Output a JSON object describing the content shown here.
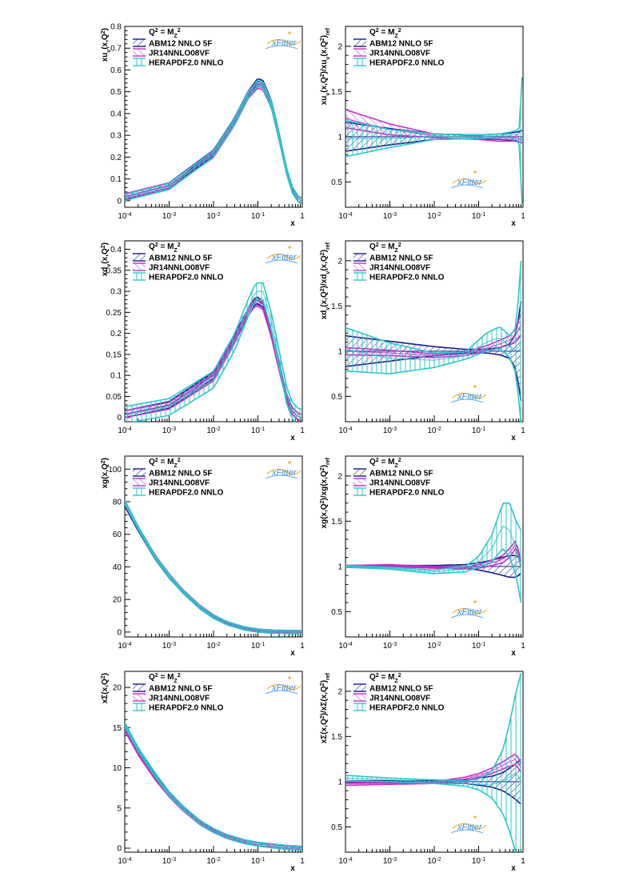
{
  "colors": {
    "abm": "#1a1a8c",
    "jr": "#c62fc9",
    "hera": "#2cc7c9"
  },
  "icons": [
    "xfitter-logo"
  ],
  "panel_titles": [
    {
      "left_y": "xu_v(x,Q^2)",
      "right_y": "xu_v(x,Q^2)/xu_v(x,Q^2)_ref"
    },
    {
      "left_y": "xd_v(x,Q^2)",
      "right_y": "xd_v(x,Q^2)/xd_v(x,Q^2)_ref"
    },
    {
      "left_y": "xg(x,Q^2)",
      "right_y": "xg(x,Q^2)/xg(x,Q^2)_ref"
    },
    {
      "left_y": "xΣ(x,Q^2)",
      "right_y": "xΣ(x,Q^2)/xΣ(x,Q^2)_ref"
    }
  ],
  "chart_data": [
    {
      "type": "line",
      "id": "uv_abs",
      "ylabel": "xu_v(x,Q^2)",
      "xlabel": "x",
      "xscale": "log",
      "xlim": [
        0.0001,
        1
      ],
      "ylim": [
        -0.03,
        0.8
      ],
      "yticks": [
        0,
        0.1,
        0.2,
        0.3,
        0.4,
        0.5,
        0.6,
        0.7,
        0.8
      ],
      "ytick_labels": [
        "0",
        "0.1",
        "0.2",
        "0.3",
        "0.4",
        "0.5",
        "0.6",
        "0.7",
        "0.8"
      ],
      "legend_header": "Q^2 = M_Z^2",
      "x": [
        0.0001,
        0.001,
        0.01,
        0.03,
        0.06,
        0.1,
        0.13,
        0.2,
        0.3,
        0.45,
        0.6,
        0.8,
        0.95
      ],
      "series": [
        {
          "name": "ABM12 NNLO 5F",
          "values": [
            0.018,
            0.07,
            0.22,
            0.37,
            0.49,
            0.55,
            0.54,
            0.45,
            0.3,
            0.13,
            0.05,
            0.008,
            0.0
          ],
          "band": 0.012
        },
        {
          "name": "JR14NNLO08VF",
          "values": [
            0.02,
            0.07,
            0.21,
            0.36,
            0.48,
            0.53,
            0.52,
            0.44,
            0.29,
            0.13,
            0.05,
            0.008,
            0.0
          ],
          "band": 0.012
        },
        {
          "name": "HERAPDF2.0 NNLO",
          "values": [
            0.015,
            0.065,
            0.215,
            0.365,
            0.485,
            0.54,
            0.53,
            0.445,
            0.295,
            0.13,
            0.05,
            0.008,
            0.0
          ],
          "band": 0.014
        }
      ]
    },
    {
      "type": "line",
      "id": "uv_ratio",
      "ylabel": "xu_v(x,Q^2)/xu_v(x,Q^2)_ref",
      "xlabel": "x",
      "xscale": "log",
      "xlim": [
        0.0001,
        1
      ],
      "ylim": [
        0.22,
        2.22
      ],
      "yticks": [
        0.5,
        1,
        1.5,
        2
      ],
      "ytick_labels": [
        "0.5",
        "1",
        "1.5",
        "2"
      ],
      "legend_header": "Q^2 = M_Z^2",
      "x": [
        0.0001,
        0.001,
        0.01,
        0.1,
        0.3,
        0.5,
        0.7,
        0.85,
        0.95
      ],
      "series": [
        {
          "name": "ABM12 NNLO 5F",
          "values": [
            1.0,
            1.0,
            1.0,
            1.0,
            1.0,
            1.0,
            1.0,
            1.0,
            1.0
          ],
          "band": [
            0.16,
            0.09,
            0.03,
            0.02,
            0.03,
            0.04,
            0.05,
            0.06,
            0.07
          ]
        },
        {
          "name": "JR14NNLO08VF",
          "values": [
            1.2,
            1.08,
            1.01,
            0.99,
            0.97,
            0.97,
            0.98,
            0.97,
            0.96
          ],
          "band": [
            0.1,
            0.06,
            0.02,
            0.02,
            0.02,
            0.02,
            0.02,
            0.03,
            0.03
          ]
        },
        {
          "name": "HERAPDF2.0 NNLO",
          "values": [
            0.98,
            0.98,
            1.0,
            1.0,
            1.01,
            1.02,
            1.02,
            1.0,
            0.96
          ],
          "band": [
            0.2,
            0.1,
            0.03,
            0.02,
            0.02,
            0.03,
            0.05,
            0.1,
            0.7
          ]
        }
      ]
    },
    {
      "type": "line",
      "id": "dv_abs",
      "ylabel": "xd_v(x,Q^2)",
      "xlabel": "x",
      "xscale": "log",
      "xlim": [
        0.0001,
        1
      ],
      "ylim": [
        -0.01,
        0.42
      ],
      "yticks": [
        0,
        0.05,
        0.1,
        0.15,
        0.2,
        0.25,
        0.3,
        0.35,
        0.4
      ],
      "ytick_labels": [
        "0",
        "0.05",
        "0.1",
        "0.15",
        "0.2",
        "0.25",
        "0.3",
        "0.35",
        "0.4"
      ],
      "legend_header": "Q^2 = M_Z^2",
      "x": [
        0.0001,
        0.001,
        0.01,
        0.03,
        0.06,
        0.09,
        0.13,
        0.2,
        0.3,
        0.45,
        0.6,
        0.8,
        0.95
      ],
      "series": [
        {
          "name": "ABM12 NNLO 5F",
          "values": [
            0.008,
            0.03,
            0.1,
            0.19,
            0.25,
            0.28,
            0.27,
            0.2,
            0.12,
            0.045,
            0.015,
            0.002,
            0.0
          ],
          "band": 0.008
        },
        {
          "name": "JR14NNLO08VF",
          "values": [
            0.008,
            0.028,
            0.095,
            0.185,
            0.25,
            0.275,
            0.265,
            0.2,
            0.12,
            0.045,
            0.015,
            0.002,
            0.0
          ],
          "band": 0.008
        },
        {
          "name": "HERAPDF2.0 NNLO",
          "values": [
            0.006,
            0.025,
            0.09,
            0.18,
            0.26,
            0.3,
            0.3,
            0.23,
            0.14,
            0.05,
            0.017,
            0.002,
            0.0
          ],
          "band": 0.02
        }
      ]
    },
    {
      "type": "line",
      "id": "dv_ratio",
      "ylabel": "xd_v(x,Q^2)/xd_v(x,Q^2)_ref",
      "xlabel": "x",
      "xscale": "log",
      "xlim": [
        0.0001,
        1
      ],
      "ylim": [
        0.22,
        2.22
      ],
      "yticks": [
        0.5,
        1,
        1.5,
        2
      ],
      "ytick_labels": [
        "0.5",
        "1",
        "1.5",
        "2"
      ],
      "legend_header": "Q^2 = M_Z^2",
      "x": [
        0.0001,
        0.001,
        0.01,
        0.05,
        0.15,
        0.3,
        0.5,
        0.7,
        0.9
      ],
      "series": [
        {
          "name": "ABM12 NNLO 5F",
          "values": [
            1.0,
            1.0,
            1.0,
            1.0,
            1.0,
            1.0,
            1.0,
            1.0,
            1.0
          ],
          "band": [
            0.17,
            0.11,
            0.05,
            0.02,
            0.02,
            0.04,
            0.08,
            0.2,
            0.55
          ]
        },
        {
          "name": "JR14NNLO08VF",
          "values": [
            1.0,
            0.98,
            0.95,
            0.97,
            1.03,
            1.08,
            1.12,
            1.18,
            1.3
          ],
          "band": [
            0.04,
            0.03,
            0.02,
            0.02,
            0.03,
            0.04,
            0.05,
            0.08,
            0.12
          ]
        },
        {
          "name": "HERAPDF2.0 NNLO",
          "values": [
            1.02,
            0.92,
            0.9,
            0.95,
            1.1,
            1.15,
            1.05,
            1.0,
            1.1
          ],
          "band": [
            0.24,
            0.17,
            0.08,
            0.04,
            0.1,
            0.12,
            0.12,
            0.25,
            0.9
          ]
        }
      ]
    },
    {
      "type": "line",
      "id": "g_abs",
      "ylabel": "xg(x,Q^2)",
      "xlabel": "x",
      "xscale": "log",
      "xlim": [
        0.0001,
        1
      ],
      "ylim": [
        -3,
        108
      ],
      "yticks": [
        0,
        20,
        40,
        60,
        80,
        100
      ],
      "ytick_labels": [
        "0",
        "20",
        "40",
        "60",
        "80",
        "100"
      ],
      "legend_header": "Q^2 = M_Z^2",
      "x": [
        0.0001,
        0.0002,
        0.0005,
        0.001,
        0.002,
        0.005,
        0.01,
        0.02,
        0.05,
        0.1,
        0.2,
        0.5,
        1.0
      ],
      "series": [
        {
          "name": "ABM12 NNLO 5F",
          "values": [
            78,
            63,
            45,
            34,
            25,
            15,
            9.5,
            5.5,
            2.2,
            0.9,
            0.3,
            0.02,
            0.0
          ],
          "band": 0.8
        },
        {
          "name": "JR14NNLO08VF",
          "values": [
            79,
            64,
            46,
            35,
            25.5,
            15.5,
            9.8,
            5.6,
            2.3,
            0.9,
            0.3,
            0.02,
            0.0
          ],
          "band": 0.8
        },
        {
          "name": "HERAPDF2.0 NNLO",
          "values": [
            80,
            64,
            45.5,
            34.5,
            25,
            15,
            9.4,
            5.4,
            2.2,
            0.9,
            0.3,
            0.02,
            0.0
          ],
          "band": 1.0
        }
      ]
    },
    {
      "type": "line",
      "id": "g_ratio",
      "ylabel": "xg(x,Q^2)/xg(x,Q^2)_ref",
      "xlabel": "x",
      "xscale": "log",
      "xlim": [
        0.0001,
        1
      ],
      "ylim": [
        0.22,
        2.22
      ],
      "yticks": [
        0.5,
        1,
        1.5,
        2
      ],
      "ytick_labels": [
        "0.5",
        "1",
        "1.5",
        "2"
      ],
      "legend_header": "Q^2 = M_Z^2",
      "x": [
        0.0001,
        0.001,
        0.01,
        0.05,
        0.1,
        0.2,
        0.35,
        0.5,
        0.7,
        0.9
      ],
      "series": [
        {
          "name": "ABM12 NNLO 5F",
          "values": [
            1.0,
            1.0,
            1.0,
            1.0,
            1.0,
            1.0,
            1.0,
            1.0,
            1.0,
            1.0
          ],
          "band": [
            0.01,
            0.01,
            0.01,
            0.02,
            0.04,
            0.07,
            0.1,
            0.12,
            0.12,
            0.08
          ]
        },
        {
          "name": "JR14NNLO08VF",
          "values": [
            1.0,
            1.01,
            0.99,
            0.98,
            1.0,
            1.04,
            1.08,
            1.15,
            1.25,
            1.02
          ],
          "band": [
            0.01,
            0.01,
            0.01,
            0.01,
            0.02,
            0.03,
            0.04,
            0.05,
            0.04,
            0.03
          ]
        },
        {
          "name": "HERAPDF2.0 NNLO",
          "values": [
            1.0,
            0.98,
            0.94,
            0.97,
            1.05,
            1.2,
            1.45,
            1.4,
            1.2,
            1.0
          ],
          "band": [
            0.01,
            0.01,
            0.02,
            0.03,
            0.06,
            0.15,
            0.25,
            0.3,
            0.3,
            0.4
          ]
        }
      ]
    },
    {
      "type": "line",
      "id": "sigma_abs",
      "ylabel": "xΣ(x,Q^2)",
      "xlabel": "x",
      "xscale": "log",
      "xlim": [
        0.0001,
        1
      ],
      "ylim": [
        -0.5,
        22
      ],
      "yticks": [
        0,
        5,
        10,
        15,
        20
      ],
      "ytick_labels": [
        "0",
        "5",
        "10",
        "15",
        "20"
      ],
      "legend_header": "Q^2 = M_Z^2",
      "x": [
        0.0001,
        0.0002,
        0.0005,
        0.001,
        0.002,
        0.005,
        0.01,
        0.02,
        0.05,
        0.1,
        0.2,
        0.5,
        1.0
      ],
      "series": [
        {
          "name": "ABM12 NNLO 5F",
          "values": [
            15.0,
            12.0,
            8.8,
            6.7,
            5.0,
            3.2,
            2.2,
            1.45,
            0.8,
            0.5,
            0.3,
            0.08,
            0.0
          ],
          "band": 0.2
        },
        {
          "name": "JR14NNLO08VF",
          "values": [
            14.8,
            11.8,
            8.6,
            6.6,
            4.9,
            3.1,
            2.15,
            1.42,
            0.78,
            0.5,
            0.3,
            0.08,
            0.0
          ],
          "band": 0.2
        },
        {
          "name": "HERAPDF2.0 NNLO",
          "values": [
            15.4,
            12.3,
            9.0,
            6.8,
            5.05,
            3.2,
            2.2,
            1.45,
            0.8,
            0.5,
            0.3,
            0.08,
            0.0
          ],
          "band": 0.25
        }
      ]
    },
    {
      "type": "line",
      "id": "sigma_ratio",
      "ylabel": "xΣ(x,Q^2)/xΣ(x,Q^2)_ref",
      "xlabel": "x",
      "xscale": "log",
      "xlim": [
        0.0001,
        1
      ],
      "ylim": [
        0.22,
        2.22
      ],
      "yticks": [
        0.5,
        1,
        1.5,
        2
      ],
      "ytick_labels": [
        "0.5",
        "1",
        "1.5",
        "2"
      ],
      "legend_header": "Q^2 = M_Z^2",
      "x": [
        0.0001,
        0.001,
        0.01,
        0.05,
        0.1,
        0.2,
        0.35,
        0.5,
        0.7,
        0.9
      ],
      "series": [
        {
          "name": "ABM12 NNLO 5F",
          "values": [
            1.0,
            1.0,
            1.0,
            1.0,
            1.0,
            1.0,
            1.0,
            1.0,
            1.0,
            1.0
          ],
          "band": [
            0.01,
            0.01,
            0.01,
            0.02,
            0.04,
            0.06,
            0.1,
            0.15,
            0.2,
            0.25
          ]
        },
        {
          "name": "JR14NNLO08VF",
          "values": [
            0.98,
            0.98,
            0.99,
            1.03,
            1.07,
            1.12,
            1.18,
            1.22,
            1.25,
            1.15
          ],
          "band": [
            0.02,
            0.01,
            0.01,
            0.02,
            0.02,
            0.03,
            0.04,
            0.05,
            0.06,
            0.05
          ]
        },
        {
          "name": "HERAPDF2.0 NNLO",
          "values": [
            1.04,
            1.02,
            1.0,
            0.98,
            0.97,
            0.97,
            1.0,
            1.05,
            1.1,
            1.0
          ],
          "band": [
            0.03,
            0.02,
            0.02,
            0.03,
            0.06,
            0.15,
            0.35,
            0.6,
            0.9,
            1.2
          ]
        }
      ]
    }
  ]
}
